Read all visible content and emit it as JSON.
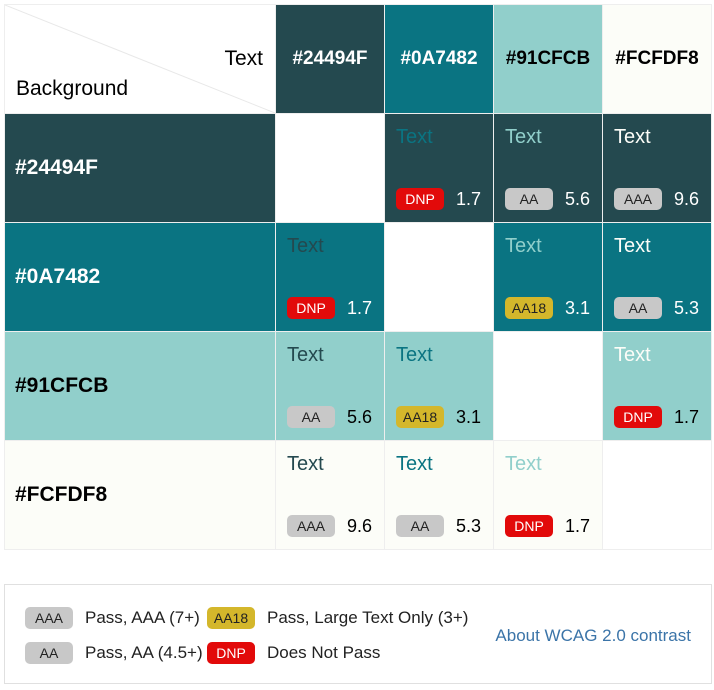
{
  "corner": {
    "text_label": "Text",
    "background_label": "Background"
  },
  "colors": [
    "#24494F",
    "#0A7482",
    "#91CFCB",
    "#FCFDF8"
  ],
  "header_text_colors": [
    "#ffffff",
    "#ffffff",
    "#000000",
    "#000000"
  ],
  "sample_text": "Text",
  "badge_colors": {
    "AAA": "#c8c8c8",
    "AA": "#c8c8c8",
    "AA18": "#d4b72b",
    "DNP": "#e20a0a"
  },
  "rows": [
    {
      "background": "#24494F",
      "cells": [
        null,
        {
          "rating": "DNP",
          "ratio": "1.7"
        },
        {
          "rating": "AA",
          "ratio": "5.6"
        },
        {
          "rating": "AAA",
          "ratio": "9.6"
        }
      ]
    },
    {
      "background": "#0A7482",
      "cells": [
        {
          "rating": "DNP",
          "ratio": "1.7"
        },
        null,
        {
          "rating": "AA18",
          "ratio": "3.1"
        },
        {
          "rating": "AA",
          "ratio": "5.3"
        }
      ]
    },
    {
      "background": "#91CFCB",
      "cells": [
        {
          "rating": "AA",
          "ratio": "5.6"
        },
        {
          "rating": "AA18",
          "ratio": "3.1"
        },
        null,
        {
          "rating": "DNP",
          "ratio": "1.7"
        }
      ]
    },
    {
      "background": "#FCFDF8",
      "cells": [
        {
          "rating": "AAA",
          "ratio": "9.6"
        },
        {
          "rating": "AA",
          "ratio": "5.3"
        },
        {
          "rating": "DNP",
          "ratio": "1.7"
        },
        null
      ]
    }
  ],
  "legend": {
    "items": [
      {
        "badge": "AAA",
        "text": "Pass, AAA (7+)"
      },
      {
        "badge": "AA18",
        "text": "Pass, Large Text Only (3+)"
      },
      {
        "badge": "AA",
        "text": "Pass, AA (4.5+)"
      },
      {
        "badge": "DNP",
        "text": "Does Not Pass"
      }
    ],
    "link": "About WCAG 2.0 contrast"
  }
}
